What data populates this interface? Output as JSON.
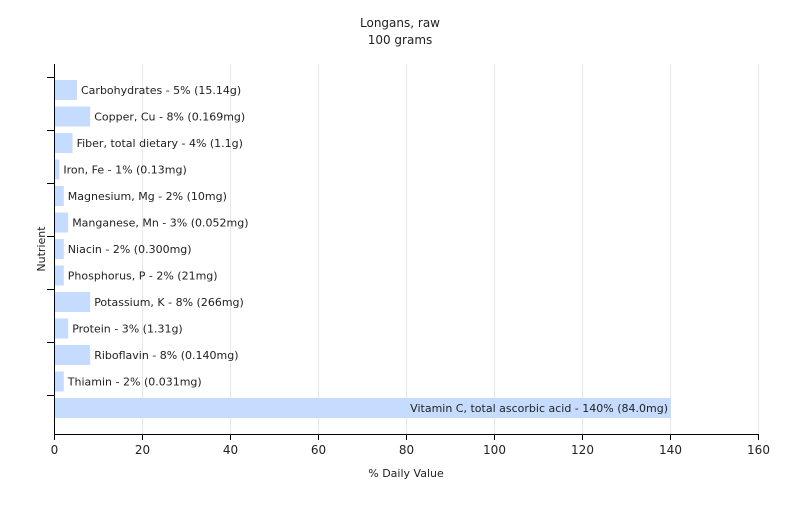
{
  "chart_data": {
    "type": "bar",
    "orientation": "horizontal",
    "title": "Longans, raw",
    "subtitle": "100 grams",
    "xlabel": "% Daily Value",
    "ylabel": "Nutrient",
    "xlim": [
      0,
      160
    ],
    "xticks": [
      0,
      20,
      40,
      60,
      80,
      100,
      120,
      140,
      160
    ],
    "grid": true,
    "bar_color": "#c6dcff",
    "categories": [
      "Carbohydrates",
      "Copper, Cu",
      "Fiber, total dietary",
      "Iron, Fe",
      "Magnesium, Mg",
      "Manganese, Mn",
      "Niacin",
      "Phosphorus, P",
      "Potassium, K",
      "Protein",
      "Riboflavin",
      "Thiamin",
      "Vitamin C, total ascorbic acid"
    ],
    "values": [
      5,
      8,
      4,
      1,
      2,
      3,
      2,
      2,
      8,
      3,
      8,
      2,
      140
    ],
    "labels": [
      "Carbohydrates - 5% (15.14g)",
      "Copper, Cu - 8% (0.169mg)",
      "Fiber, total dietary - 4% (1.1g)",
      "Iron, Fe - 1% (0.13mg)",
      "Magnesium, Mg - 2% (10mg)",
      "Manganese, Mn - 3% (0.052mg)",
      "Niacin - 2% (0.300mg)",
      "Phosphorus, P - 2% (21mg)",
      "Potassium, K - 8% (266mg)",
      "Protein - 3% (1.31g)",
      "Riboflavin - 8% (0.140mg)",
      "Thiamin - 2% (0.031mg)",
      "Vitamin C, total ascorbic acid - 140% (84.0mg)"
    ]
  }
}
